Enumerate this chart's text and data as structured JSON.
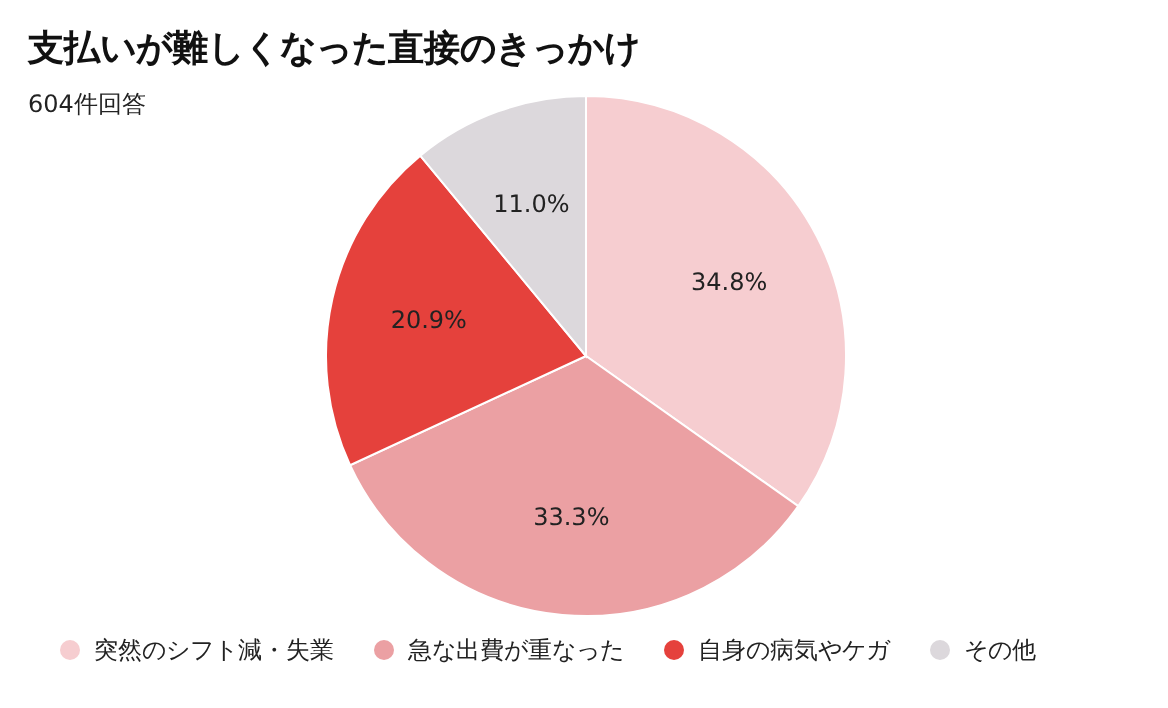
{
  "chart_data": {
    "type": "pie",
    "title": "支払いが難しくなった直接のきっかけ",
    "subtitle": "604件回答",
    "categories": [
      "突然のシフト減・失業",
      "急な出費が重なった",
      "自身の病気やケガ",
      "その他"
    ],
    "values": [
      34.8,
      33.3,
      20.9,
      11.0
    ],
    "value_labels": [
      "34.8%",
      "33.3%",
      "20.9%",
      "11.0%"
    ],
    "colors": [
      "#f6cdd0",
      "#eba0a3",
      "#e5413c",
      "#dcd8dc"
    ],
    "legend": "bottom"
  }
}
